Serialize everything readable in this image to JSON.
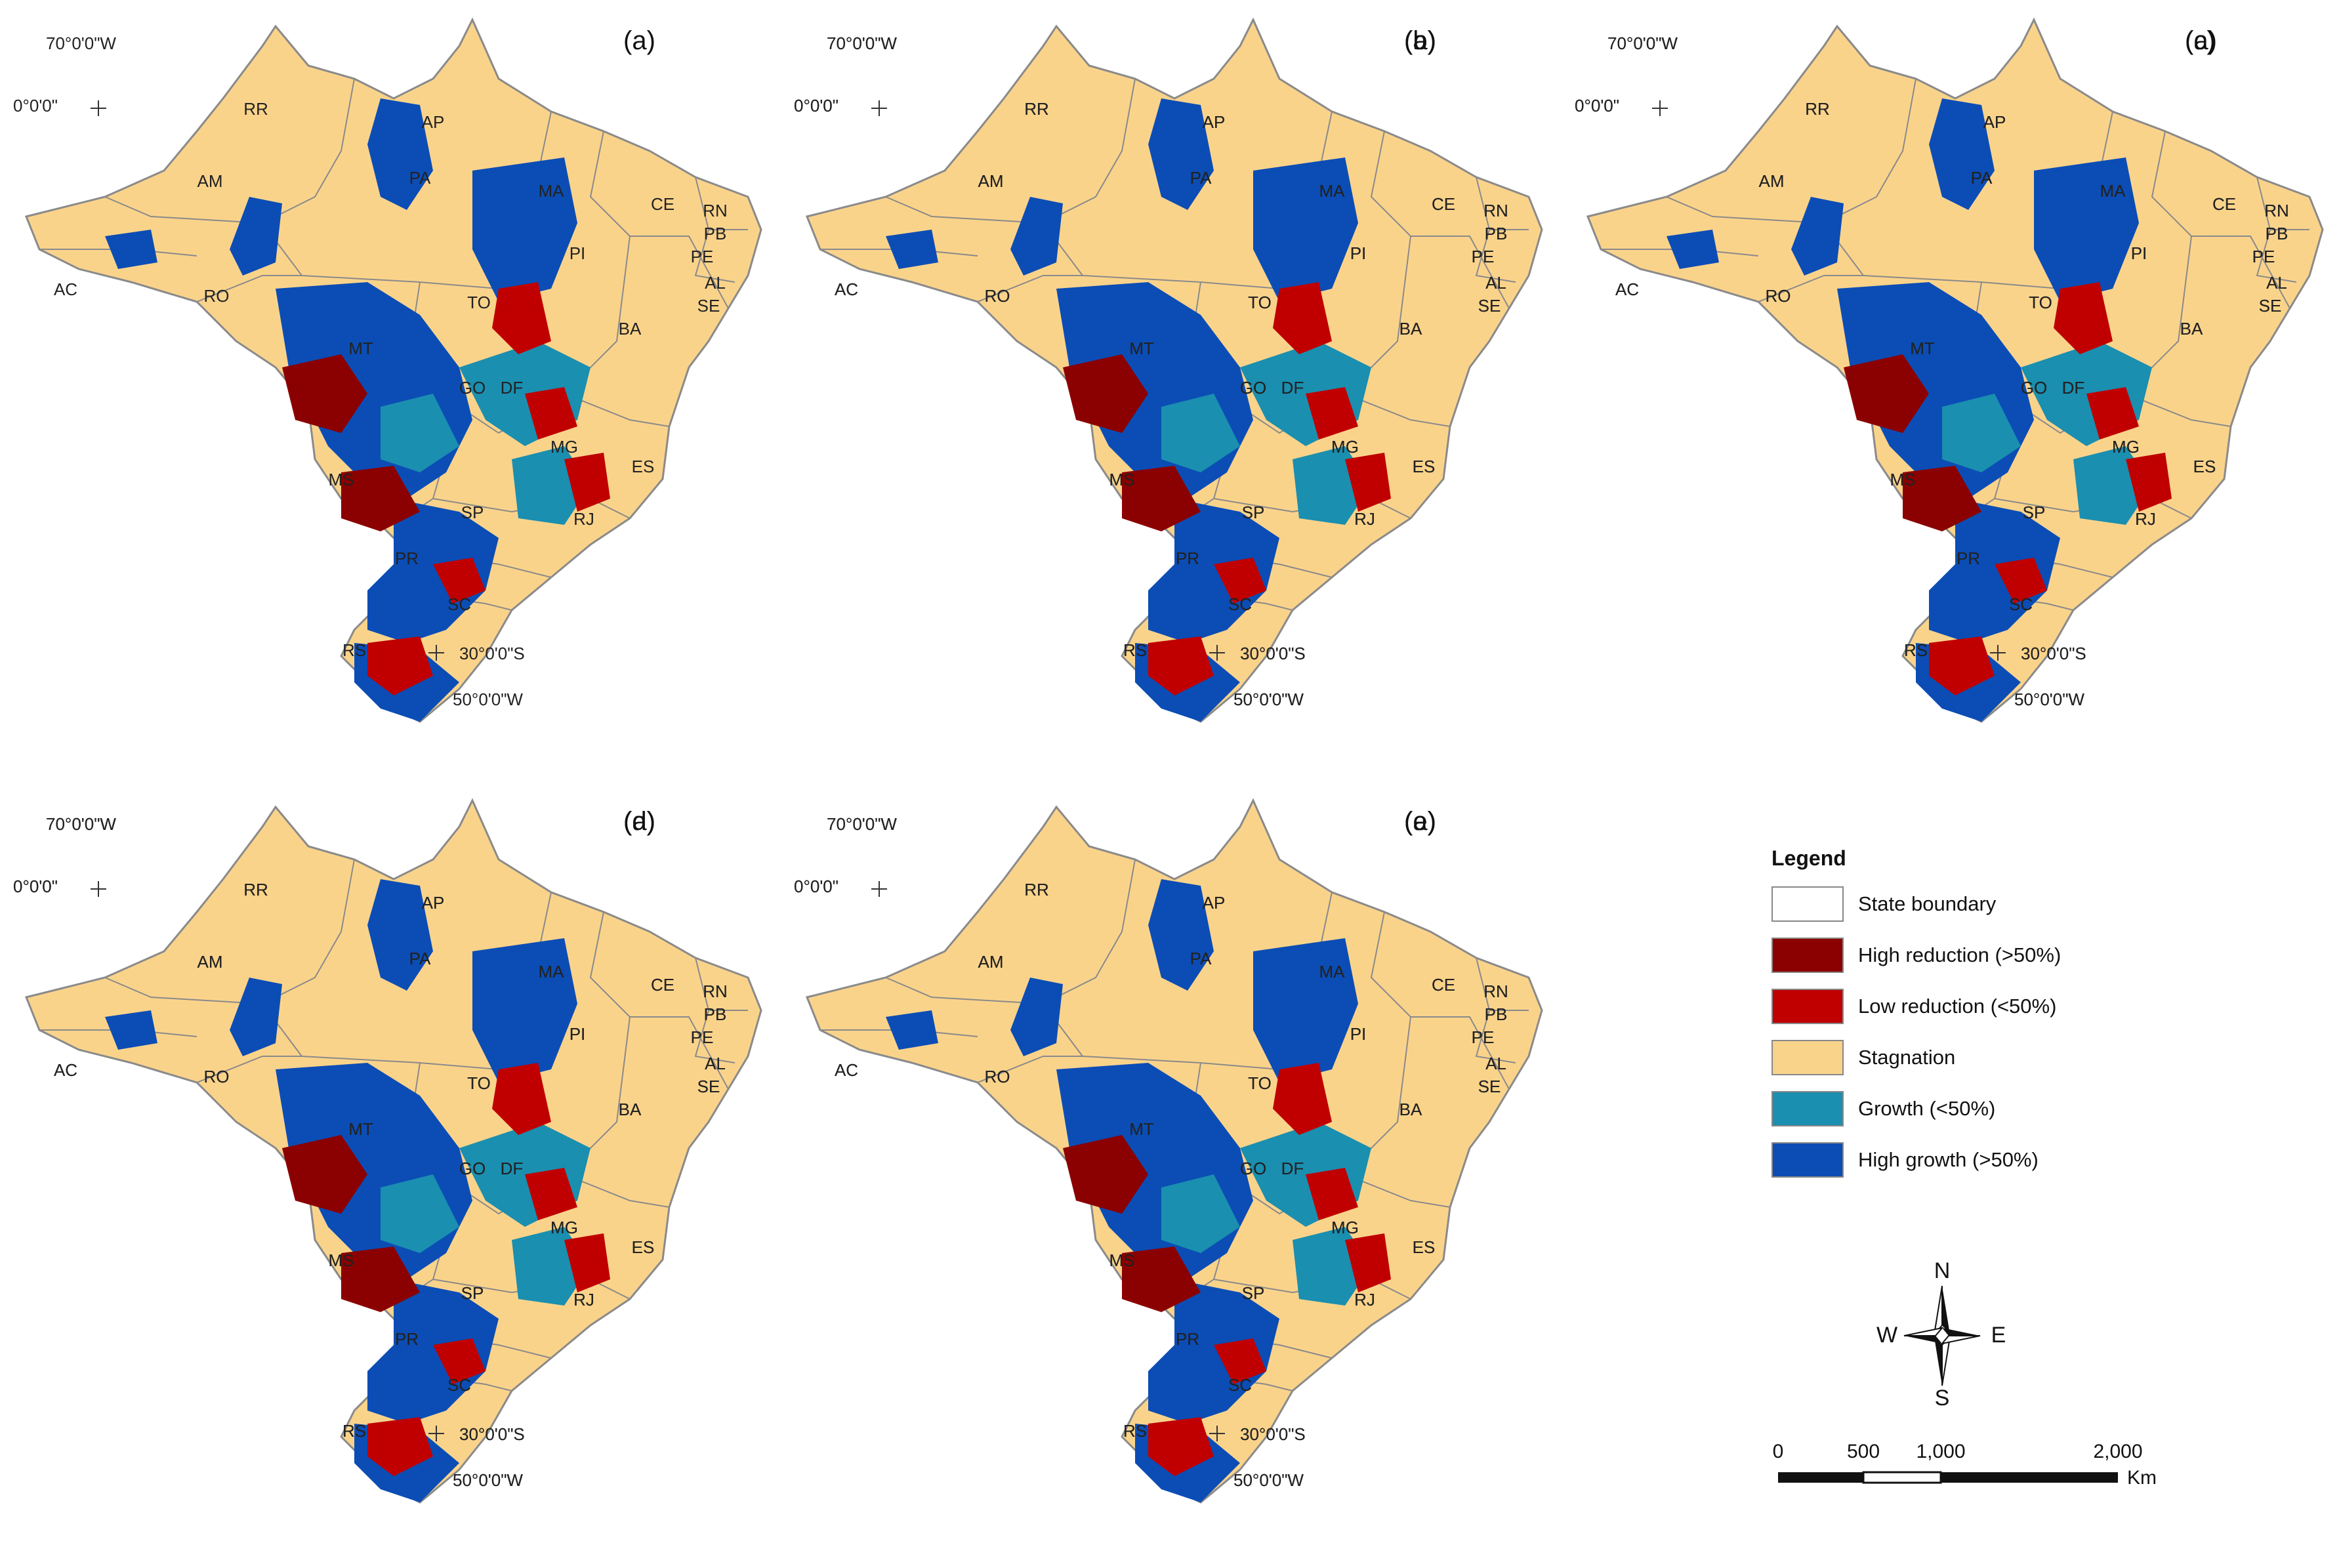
{
  "panels": [
    {
      "id": "a",
      "label": "(a)"
    },
    {
      "id": "b",
      "label": "(b)"
    },
    {
      "id": "c",
      "label": "(c)"
    },
    {
      "id": "d",
      "label": "(d)"
    },
    {
      "id": "e",
      "label": "(e)"
    }
  ],
  "coordinates": {
    "lon_west": "70°0'0\"W",
    "lat_equator": "0°0'0\"",
    "lat_south": "30°0'0\"S",
    "lon_south": "50°0'0\"W"
  },
  "states": [
    "RR",
    "AP",
    "AM",
    "PA",
    "MA",
    "CE",
    "RN",
    "PB",
    "PE",
    "AL",
    "SE",
    "PI",
    "AC",
    "RO",
    "TO",
    "BA",
    "MT",
    "GO",
    "DF",
    "MG",
    "ES",
    "MS",
    "SP",
    "RJ",
    "PR",
    "SC",
    "RS"
  ],
  "legend": {
    "title": "Legend",
    "items": [
      {
        "label": "State boundary",
        "color": "#ffffff"
      },
      {
        "label": "High reduction (>50%)",
        "color": "#8b0000"
      },
      {
        "label": "Low reduction (<50%)",
        "color": "#c00000"
      },
      {
        "label": "Stagnation",
        "color": "#fad38b"
      },
      {
        "label": "Growth (<50%)",
        "color": "#1a8fb0"
      },
      {
        "label": "High growth (>50%)",
        "color": "#0b4db5"
      }
    ]
  },
  "compass": {
    "n": "N",
    "s": "S",
    "e": "E",
    "w": "W"
  },
  "scale": {
    "ticks": [
      "0",
      "500",
      "1,000",
      "2,000"
    ],
    "unit": "Km"
  },
  "colors": {
    "stagnation": "#fad38b",
    "high_growth": "#0b4db5",
    "growth": "#1a8fb0",
    "low_reduction": "#c00000",
    "high_reduction": "#8b0000",
    "boundary": "#8a8a8a"
  }
}
